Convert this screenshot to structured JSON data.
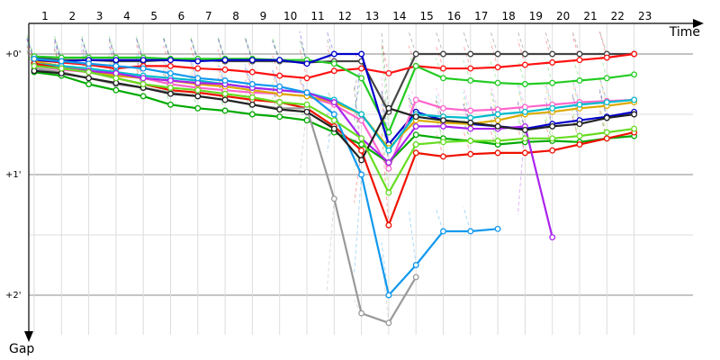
{
  "chart_data": {
    "type": "line",
    "xlabel": "Time",
    "ylabel": "Gap",
    "y_invert": true,
    "laps": [
      1,
      2,
      3,
      4,
      5,
      6,
      7,
      8,
      9,
      10,
      11,
      12,
      13,
      14,
      15,
      16,
      17,
      18,
      19,
      20,
      21,
      22,
      23
    ],
    "y_ticks": [
      "+0'",
      "+1'",
      "+2'"
    ],
    "ylim": [
      0,
      2.3
    ],
    "grid": true,
    "series": [
      {
        "color": "#444444",
        "values": [
          0.03,
          0.05,
          0.05,
          0.06,
          0.06,
          0.05,
          0.05,
          0.06,
          0.06,
          0.06,
          0.07,
          0.06,
          0.06,
          0.48,
          0.0,
          0.0,
          0.0,
          0.0,
          0.0,
          0.0,
          0.0,
          0.0,
          0.0
        ]
      },
      {
        "color": "#ff1111",
        "values": [
          0.05,
          0.07,
          0.09,
          0.12,
          0.1,
          0.1,
          0.12,
          0.13,
          0.15,
          0.18,
          0.2,
          0.14,
          0.12,
          0.16,
          0.1,
          0.12,
          0.12,
          0.11,
          0.09,
          0.07,
          0.05,
          0.03,
          0.0
        ]
      },
      {
        "color": "#22cc22",
        "values": [
          0.02,
          0.03,
          0.03,
          0.03,
          0.03,
          0.04,
          0.04,
          0.04,
          0.04,
          0.05,
          0.05,
          0.08,
          0.2,
          0.65,
          0.1,
          0.2,
          0.22,
          0.24,
          0.25,
          0.24,
          0.22,
          0.2,
          0.17
        ]
      },
      {
        "color": "#0000cc",
        "values": [
          0.05,
          0.06,
          0.05,
          0.05,
          0.05,
          0.05,
          0.06,
          0.05,
          0.05,
          0.05,
          0.08,
          0.0,
          0.0,
          0.75,
          0.48,
          0.55,
          0.58,
          0.6,
          0.62,
          0.58,
          0.55,
          0.52,
          0.48
        ]
      },
      {
        "color": "#ff66cc",
        "values": [
          0.1,
          0.13,
          0.15,
          0.18,
          0.2,
          0.25,
          0.28,
          0.3,
          0.32,
          0.33,
          0.35,
          0.42,
          0.55,
          0.95,
          0.38,
          0.45,
          0.47,
          0.46,
          0.44,
          0.42,
          0.4,
          0.39,
          0.38
        ]
      },
      {
        "color": "#ddaa00",
        "values": [
          0.06,
          0.1,
          0.14,
          0.18,
          0.2,
          0.22,
          0.25,
          0.27,
          0.3,
          0.33,
          0.35,
          0.4,
          0.5,
          0.78,
          0.55,
          0.57,
          0.58,
          0.55,
          0.5,
          0.48,
          0.45,
          0.43,
          0.4
        ]
      },
      {
        "color": "#00bbcc",
        "values": [
          0.08,
          0.1,
          0.12,
          0.15,
          0.18,
          0.2,
          0.22,
          0.25,
          0.28,
          0.3,
          0.32,
          0.38,
          0.5,
          0.8,
          0.5,
          0.52,
          0.53,
          0.5,
          0.48,
          0.45,
          0.42,
          0.4,
          0.38
        ]
      },
      {
        "color": "#00aa00",
        "values": [
          0.15,
          0.18,
          0.25,
          0.3,
          0.35,
          0.42,
          0.45,
          0.47,
          0.5,
          0.52,
          0.55,
          0.65,
          0.75,
          0.9,
          0.67,
          0.7,
          0.72,
          0.75,
          0.73,
          0.72,
          0.73,
          0.7,
          0.68
        ]
      },
      {
        "color": "#ee1100",
        "values": [
          0.08,
          0.12,
          0.15,
          0.2,
          0.25,
          0.3,
          0.32,
          0.35,
          0.38,
          0.4,
          0.45,
          0.6,
          0.8,
          1.42,
          0.82,
          0.85,
          0.83,
          0.82,
          0.82,
          0.8,
          0.75,
          0.7,
          0.65
        ]
      },
      {
        "color": "#aa22ee",
        "values": [
          0.1,
          0.12,
          0.14,
          0.16,
          0.2,
          0.22,
          0.24,
          0.25,
          0.28,
          0.3,
          0.32,
          0.4,
          0.7,
          0.9,
          0.6,
          0.6,
          0.62,
          0.62,
          0.6,
          1.52,
          null,
          null,
          null
        ]
      },
      {
        "color": "#1199ee",
        "values": [
          0.04,
          0.06,
          0.08,
          0.1,
          0.12,
          0.16,
          0.2,
          0.22,
          0.25,
          0.27,
          0.32,
          0.5,
          1.0,
          2.0,
          1.75,
          1.47,
          1.47,
          1.45,
          null,
          null,
          null,
          null,
          null
        ]
      },
      {
        "color": "#999999",
        "values": [
          0.12,
          0.15,
          0.2,
          0.25,
          0.28,
          0.32,
          0.35,
          0.38,
          0.42,
          0.45,
          0.45,
          1.2,
          2.15,
          2.23,
          1.85,
          null,
          null,
          null,
          null,
          null,
          null,
          null,
          null
        ]
      },
      {
        "color": "#222222",
        "values": [
          0.14,
          0.16,
          0.2,
          0.24,
          0.28,
          0.33,
          0.35,
          0.38,
          0.42,
          0.46,
          0.48,
          0.62,
          0.88,
          0.45,
          0.52,
          0.55,
          0.57,
          0.6,
          0.63,
          0.6,
          0.58,
          0.53,
          0.5
        ]
      },
      {
        "color": "#66dd22",
        "values": [
          0.1,
          0.12,
          0.15,
          0.2,
          0.25,
          0.28,
          0.3,
          0.33,
          0.36,
          0.4,
          0.42,
          0.55,
          0.7,
          1.15,
          0.75,
          0.73,
          0.72,
          0.72,
          0.7,
          0.7,
          0.68,
          0.65,
          0.62
        ]
      }
    ]
  }
}
